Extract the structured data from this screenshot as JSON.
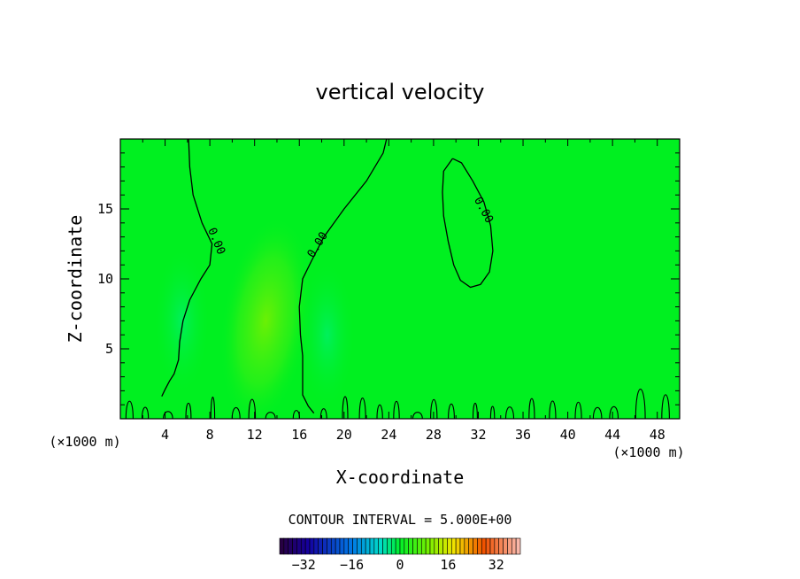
{
  "chart_data": {
    "type": "contour",
    "title": "vertical velocity",
    "xlabel": "X-coordinate",
    "ylabel": "Z-coordinate",
    "x_unit_left": "(×1000 m)",
    "x_unit_right": "(×1000 m)",
    "xlim": [
      0,
      50
    ],
    "ylim": [
      0,
      20
    ],
    "x_ticks": [
      4,
      8,
      12,
      16,
      20,
      24,
      28,
      32,
      36,
      40,
      44,
      48
    ],
    "x_tick_labels": [
      "4",
      "8",
      "12",
      "16",
      "20",
      "24",
      "28",
      "32",
      "36",
      "40",
      "44",
      "48"
    ],
    "y_ticks": [
      5,
      10,
      15
    ],
    "y_tick_labels": [
      "5",
      "10",
      "15"
    ],
    "contour_interval_text": "CONTOUR INTERVAL = 5.000E+00",
    "contour_level": 0.0,
    "contour_labels": [
      {
        "text": "0.00",
        "x": 8.3,
        "z": 12.6
      },
      {
        "text": "0.00",
        "x": 17.9,
        "z": 12.3
      },
      {
        "text": "0.00",
        "x": 32.2,
        "z": 14.8
      }
    ],
    "contours": [
      {
        "name": "west",
        "points": [
          [
            6.1,
            20
          ],
          [
            6.2,
            18
          ],
          [
            6.5,
            16
          ],
          [
            7.3,
            14
          ],
          [
            8.2,
            12.5
          ],
          [
            8,
            11
          ],
          [
            7.2,
            10
          ],
          [
            6.2,
            8.5
          ],
          [
            5.6,
            7
          ],
          [
            5.3,
            5.5
          ],
          [
            5.2,
            4.2
          ],
          [
            4.8,
            3.2
          ],
          [
            4.4,
            2.7
          ],
          [
            4,
            2.1
          ],
          [
            3.7,
            1.6
          ]
        ]
      },
      {
        "name": "middle",
        "points": [
          [
            23.8,
            20
          ],
          [
            23.5,
            19
          ],
          [
            22,
            17
          ],
          [
            20,
            15
          ],
          [
            18.2,
            13
          ],
          [
            17.1,
            11.3
          ],
          [
            16.3,
            10
          ],
          [
            16,
            8
          ],
          [
            16.1,
            6
          ],
          [
            16.3,
            4.5
          ],
          [
            16.3,
            3
          ],
          [
            16.3,
            1.7
          ],
          [
            16.8,
            0.9
          ],
          [
            17.3,
            0.4
          ]
        ]
      },
      {
        "name": "closed-east",
        "points": [
          [
            29.7,
            18.6
          ],
          [
            30.5,
            18.3
          ],
          [
            31.5,
            17
          ],
          [
            32.5,
            15.5
          ],
          [
            33.1,
            13.8
          ],
          [
            33.3,
            12
          ],
          [
            33,
            10.5
          ],
          [
            32.2,
            9.6
          ],
          [
            31.3,
            9.4
          ],
          [
            30.4,
            9.9
          ],
          [
            29.8,
            11
          ],
          [
            29.3,
            12.7
          ],
          [
            28.9,
            14.5
          ],
          [
            28.8,
            16.2
          ],
          [
            28.9,
            17.7
          ],
          [
            29.7,
            18.6
          ]
        ]
      }
    ],
    "near_surface_wiggles_z_max": 3.0,
    "color_bar": {
      "ticks": [
        -32,
        -16,
        0,
        16,
        32
      ],
      "tick_labels": [
        "−32",
        "−16",
        "0",
        "16",
        "32"
      ],
      "range": [
        -40,
        40
      ],
      "steps": 56
    },
    "field_highlights": [
      {
        "sign": "positive",
        "x_center": 13,
        "z_center": 7,
        "value_max": 3
      },
      {
        "sign": "negative",
        "x_center": 18.5,
        "z_center": 6,
        "value_max": -2
      },
      {
        "sign": "negative",
        "x_center": 5.5,
        "z_center": 7,
        "value_max": -1
      }
    ],
    "colors": {
      "background_field": "#00f020",
      "contour_line": "#000000",
      "frame": "#000000"
    }
  }
}
